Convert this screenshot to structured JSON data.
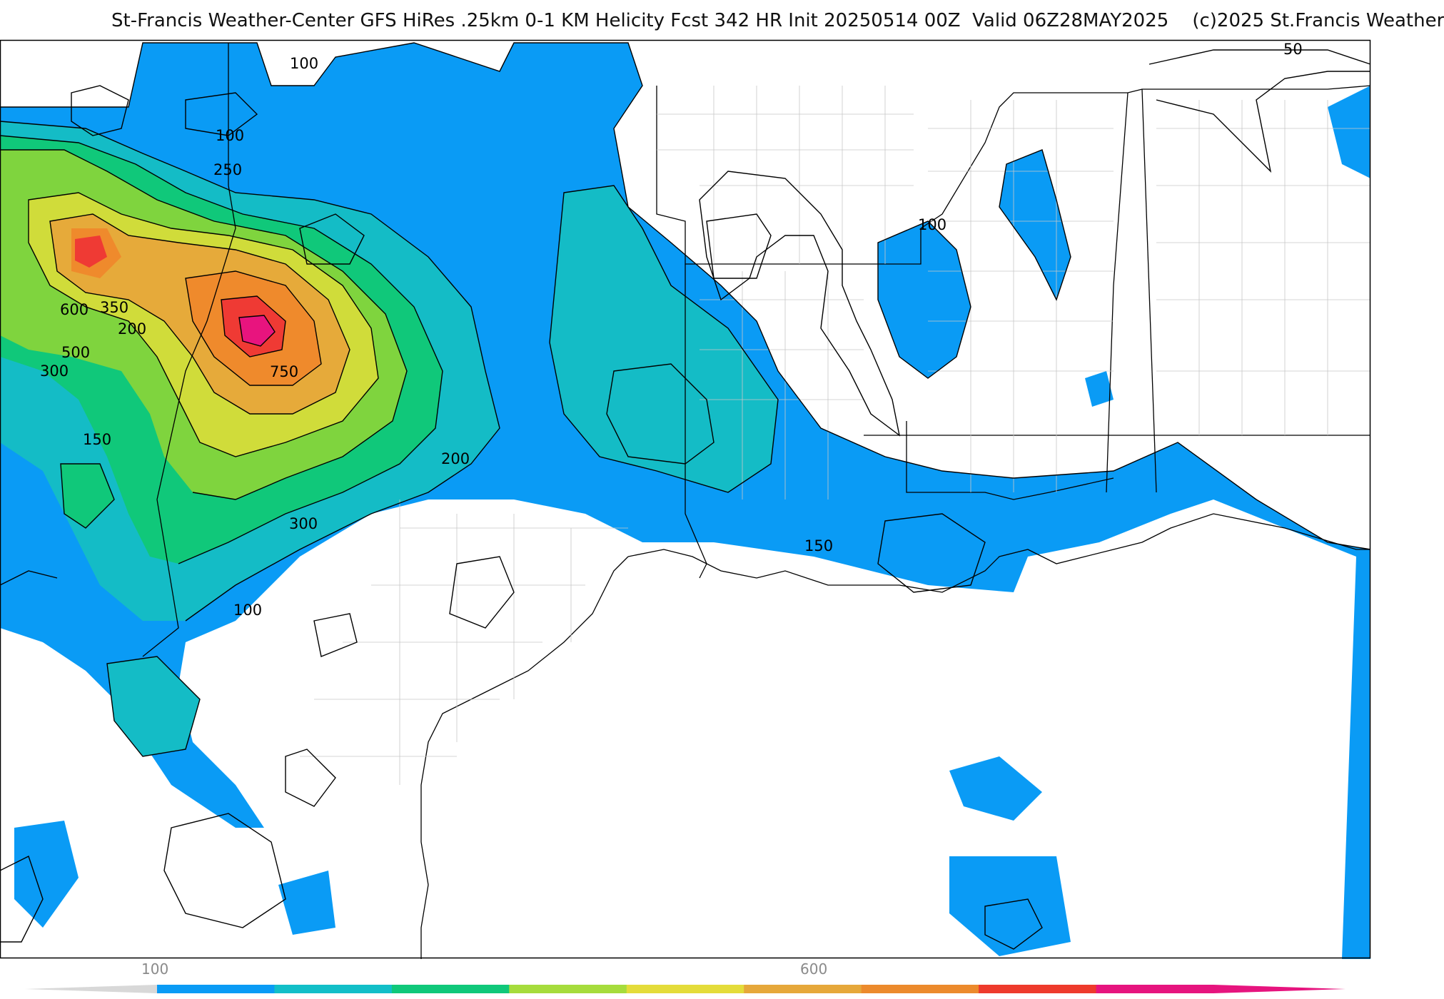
{
  "title": "St-Francis Weather-Center GFS HiRes .25km 0-1 KM Helicity Fcst 342 HR Init 20250514 00Z  Valid 06Z28MAY2025    (c)2025 St.Francis Weather",
  "contour_labels": {
    "c100_top": "100",
    "c100_nw": "100",
    "c250": "250",
    "c600": "600",
    "c350": "350",
    "c200_w": "200",
    "c500": "500",
    "c300_w": "300",
    "c750": "750",
    "c150_w": "150",
    "c200_e": "200",
    "c300_s": "300",
    "c100_sw": "100",
    "c150_e": "150",
    "c100_ms": "100",
    "c50_ne": "50"
  },
  "legend": {
    "tick_low": "100",
    "tick_high": "600",
    "colors": [
      "#0a9bf5",
      "#12bfc8",
      "#10c87a",
      "#a6dc3c",
      "#e4dc3a",
      "#e6a83a",
      "#ec8a2c",
      "#ee3a2c",
      "#e6147e"
    ]
  },
  "colors": {
    "band_150": "#0a9bf5",
    "band_200": "#14bcc6",
    "band_250": "#10c87a",
    "band_300": "#7fd43e",
    "band_350": "#d0dc3a",
    "band_500": "#e6aa3a",
    "band_600": "#ef8a2c",
    "band_700": "#ef3a34",
    "band_750": "#e8147e"
  }
}
